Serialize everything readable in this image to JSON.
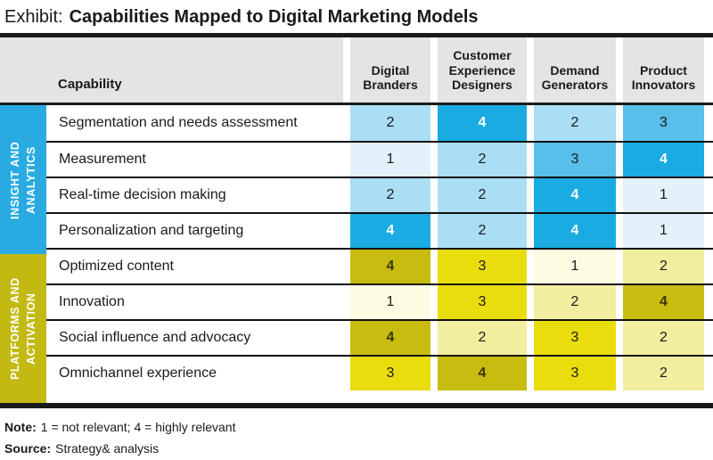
{
  "title": {
    "prefix": "Exhibit:",
    "main": "Capabilities Mapped to Digital Marketing Models"
  },
  "table": {
    "capability_header": "Capability"
  },
  "chart_data": {
    "type": "heatmap",
    "title": "Capabilities Mapped to Digital Marketing Models",
    "value_scale": {
      "min": 1,
      "max": 4,
      "meaning": "1 = not relevant; 4 = highly relevant"
    },
    "columns": [
      "Digital Branders",
      "Customer Experience Designers",
      "Demand Generators",
      "Product Innovators"
    ],
    "row_groups": [
      {
        "group_label": "INSIGHT AND ANALYTICS",
        "group_color": "#29abe2",
        "scale_colors": {
          "1": "#e3f1fa",
          "2": "#a9def5",
          "3": "#57bfe9",
          "4": "#1aabe2"
        },
        "value4_text_color": "#ffffff",
        "rows": [
          {
            "capability": "Segmentation and needs assessment",
            "values": [
              2,
              4,
              2,
              3
            ]
          },
          {
            "capability": "Measurement",
            "values": [
              1,
              2,
              3,
              4
            ]
          },
          {
            "capability": "Real-time decision making",
            "values": [
              2,
              2,
              4,
              1
            ]
          },
          {
            "capability": "Personalization and targeting",
            "values": [
              4,
              2,
              4,
              1
            ]
          }
        ]
      },
      {
        "group_label": "PLATFORMS AND ACTIVATION",
        "group_color": "#c3b913",
        "scale_colors": {
          "1": "#fdfbe1",
          "2": "#f2ee9f",
          "3": "#e9dd0e",
          "4": "#c9bc10"
        },
        "value4_text_color": "#3a3500",
        "rows": [
          {
            "capability": "Optimized content",
            "values": [
              4,
              3,
              1,
              2
            ]
          },
          {
            "capability": "Innovation",
            "values": [
              1,
              3,
              2,
              4
            ]
          },
          {
            "capability": "Social influence and advocacy",
            "values": [
              4,
              2,
              3,
              2
            ]
          },
          {
            "capability": "Omnichannel experience",
            "values": [
              3,
              4,
              3,
              2
            ]
          }
        ]
      }
    ]
  },
  "footer": {
    "note_label": "Note:",
    "note_text": "1 = not relevant; 4 = highly relevant",
    "source_label": "Source:",
    "source_text": "Strategy& analysis"
  }
}
